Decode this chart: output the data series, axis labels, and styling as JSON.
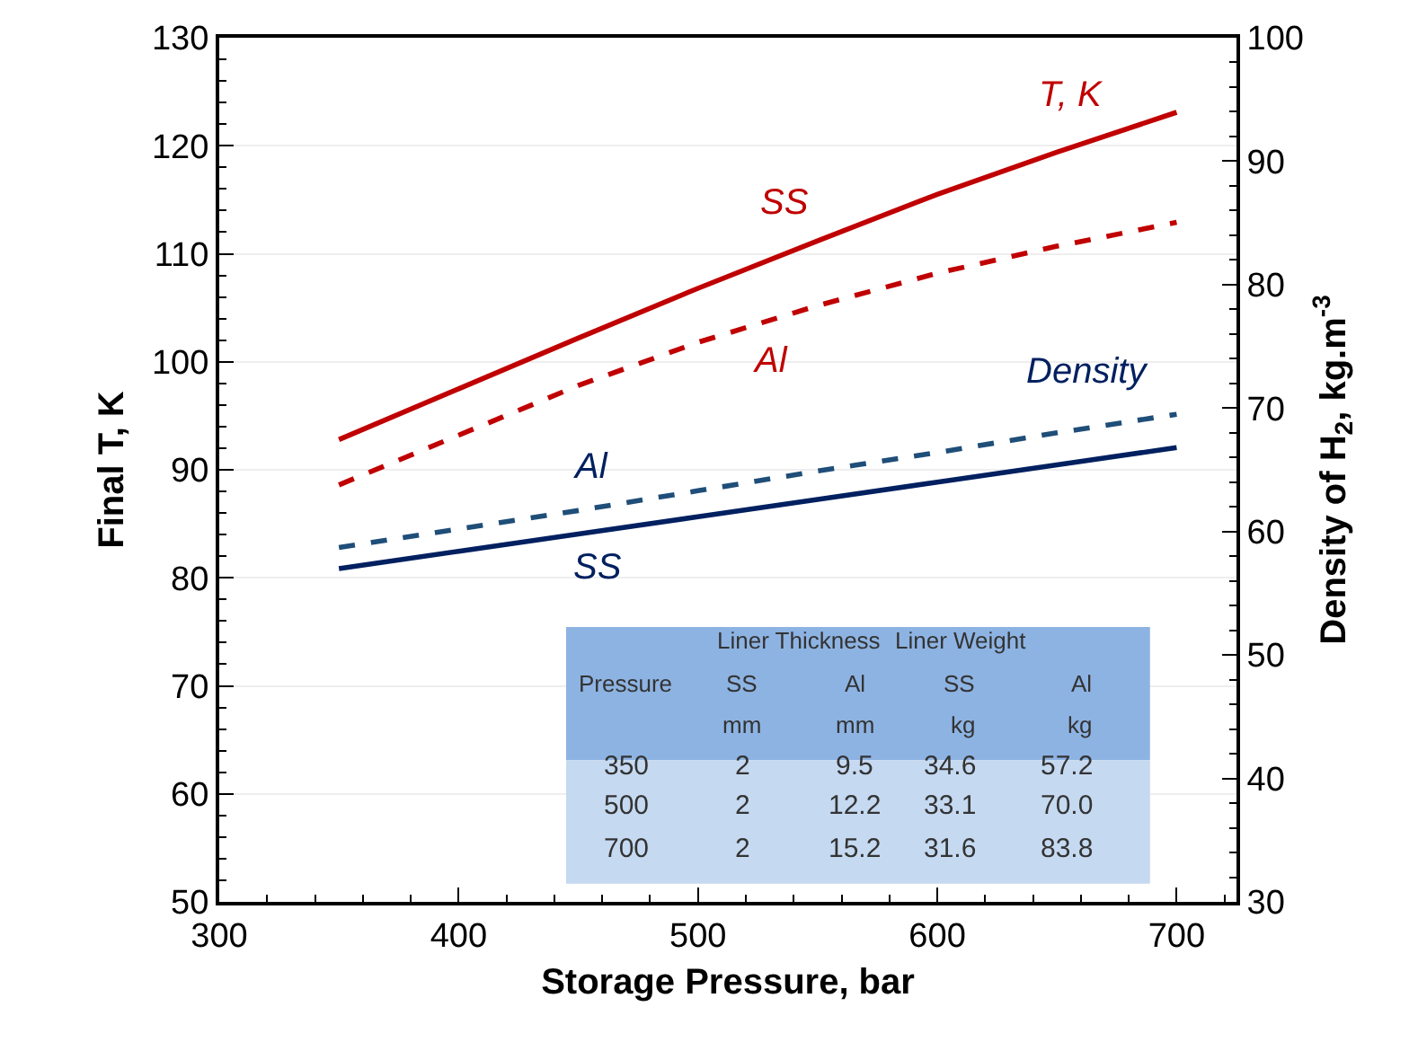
{
  "chart_data": {
    "type": "line",
    "xlabel": "Storage Pressure, bar",
    "ylabel": "Final T, K",
    "y2label": "Density of H$_{2}$, kg.m$^{-3}$",
    "x": [
      350,
      400,
      450,
      500,
      550,
      600,
      650,
      700
    ],
    "series": [
      {
        "color": "#c00000",
        "line_style": "solid",
        "values": [
          92.8,
          97.5,
          102.2,
          106.8,
          111.2,
          115.5,
          119.4,
          123.1
        ]
      },
      {
        "color": "#c00000",
        "line_style": "dashed",
        "values": [
          88.6,
          93.2,
          97.8,
          101.8,
          105.2,
          108.2,
          110.7,
          112.9
        ]
      },
      {
        "color": "#1f4e79",
        "line_style": "dashed",
        "axis": "y2",
        "values": [
          58.7,
          60.2,
          61.7,
          63.3,
          64.9,
          66.4,
          68.0,
          69.5
        ]
      },
      {
        "color": "#002060",
        "line_style": "solid",
        "axis": "y2",
        "values": [
          57.0,
          58.4,
          59.8,
          61.2,
          62.6,
          64.0,
          65.4,
          66.8
        ]
      }
    ],
    "xlim": [
      300,
      725
    ],
    "xticks": [
      300,
      400,
      500,
      600,
      700
    ],
    "ylim": [
      50,
      130
    ],
    "yticks": [
      50,
      60,
      70,
      80,
      90,
      100,
      110,
      120,
      130
    ],
    "y2lim": [
      30,
      100
    ],
    "y2ticks": [
      30,
      40,
      50,
      60,
      70,
      80,
      90,
      100
    ],
    "grid": "y",
    "marker": "none",
    "annotations": [
      "T, K",
      "SS",
      "Al",
      "Density",
      "Al",
      "SS",
      "Liner Thickness",
      "Liner Weight",
      "Pressure",
      "SS",
      "Al",
      "SS",
      "Al",
      "mm",
      "mm",
      "kg",
      "kg",
      "350",
      "2",
      "9.5",
      "34.6",
      "57.2",
      "500",
      "2",
      "12.2",
      "33.1",
      "70.0",
      "700",
      "2",
      "15.2",
      "31.6",
      "83.8"
    ]
  }
}
